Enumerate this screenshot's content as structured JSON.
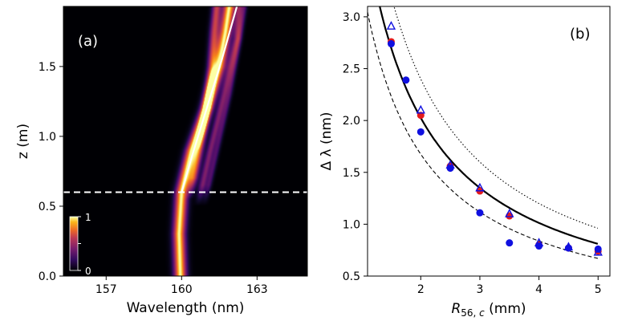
{
  "chart_data": [
    {
      "type": "heatmap",
      "panel_label": "(a)",
      "xlabel": "Wavelength (nm)",
      "ylabel": "z (m)",
      "xlim": [
        155.3,
        165.0
      ],
      "ylim": [
        0.0,
        1.93
      ],
      "x_ticks": [
        157,
        160,
        163
      ],
      "y_ticks": [
        0.0,
        0.5,
        1.0,
        1.5
      ],
      "colormap": "inferno",
      "colorbar": {
        "min_label": "0",
        "max_label": "1"
      },
      "dashed_line_z": 0.6,
      "trace_line": {
        "x": [
          160.0,
          160.4,
          161.0,
          161.6,
          162.2
        ],
        "y": [
          0.6,
          0.85,
          1.2,
          1.55,
          1.93
        ]
      },
      "ridges": [
        {
          "z": [
            0.0,
            0.3,
            0.6,
            0.9,
            1.2,
            1.5,
            1.75,
            1.93
          ],
          "center": [
            159.95,
            159.9,
            160.0,
            160.4,
            161.0,
            161.5,
            161.75,
            161.9
          ],
          "width": 0.25,
          "intensity": 1.0
        },
        {
          "z": [
            0.55,
            0.9,
            1.2,
            1.5,
            1.75,
            1.93
          ],
          "center": [
            160.3,
            160.7,
            161.0,
            161.2,
            161.3,
            161.4
          ],
          "width": 0.18,
          "intensity": 0.65
        },
        {
          "z": [
            0.5,
            0.9,
            1.3,
            1.7,
            1.93
          ],
          "center": [
            160.65,
            161.15,
            161.7,
            162.2,
            162.3
          ],
          "width": 0.15,
          "intensity": 0.45
        },
        {
          "z": [
            0.5,
            0.9,
            1.3,
            1.7,
            1.93
          ],
          "center": [
            160.9,
            161.4,
            161.9,
            162.3,
            162.5
          ],
          "width": 0.12,
          "intensity": 0.3
        }
      ]
    },
    {
      "type": "scatter",
      "panel_label": "(b)",
      "xlabel": "R56,c (mm)",
      "ylabel": "Δ λ (nm)",
      "xlim": [
        1.1,
        5.2
      ],
      "ylim": [
        0.5,
        3.1
      ],
      "x_ticks": [
        2,
        3,
        4,
        5
      ],
      "y_ticks": [
        0.5,
        1.0,
        1.5,
        2.0,
        2.5,
        3.0
      ],
      "series": [
        {
          "marker": "circle",
          "color": "#e41a1c",
          "x": [
            1.5,
            2.0,
            2.5,
            3.0,
            3.5,
            4.0,
            4.5,
            5.0
          ],
          "y": [
            2.76,
            2.05,
            1.56,
            1.32,
            1.08,
            0.8,
            0.77,
            0.74
          ]
        },
        {
          "marker": "circle",
          "color": "#1010e0",
          "x": [
            1.5,
            1.75,
            2.0,
            2.5,
            3.0,
            3.5,
            4.0,
            4.5,
            5.0
          ],
          "y": [
            2.74,
            2.39,
            1.89,
            1.54,
            1.11,
            0.82,
            0.79,
            0.77,
            0.76
          ]
        },
        {
          "marker": "triangle-open",
          "color": "#1010e0",
          "x": [
            1.5,
            2.0,
            2.5,
            3.0,
            3.5,
            4.0,
            4.5,
            5.0
          ],
          "y": [
            2.91,
            2.1,
            1.57,
            1.35,
            1.1,
            0.82,
            0.78,
            0.73
          ]
        }
      ],
      "curves": [
        {
          "style": "solid",
          "color": "#000000",
          "coef": 4.05
        },
        {
          "style": "dashed",
          "color": "#000000",
          "coef": 3.35
        },
        {
          "style": "dotted",
          "color": "#000000",
          "coef": 4.8
        }
      ]
    }
  ]
}
